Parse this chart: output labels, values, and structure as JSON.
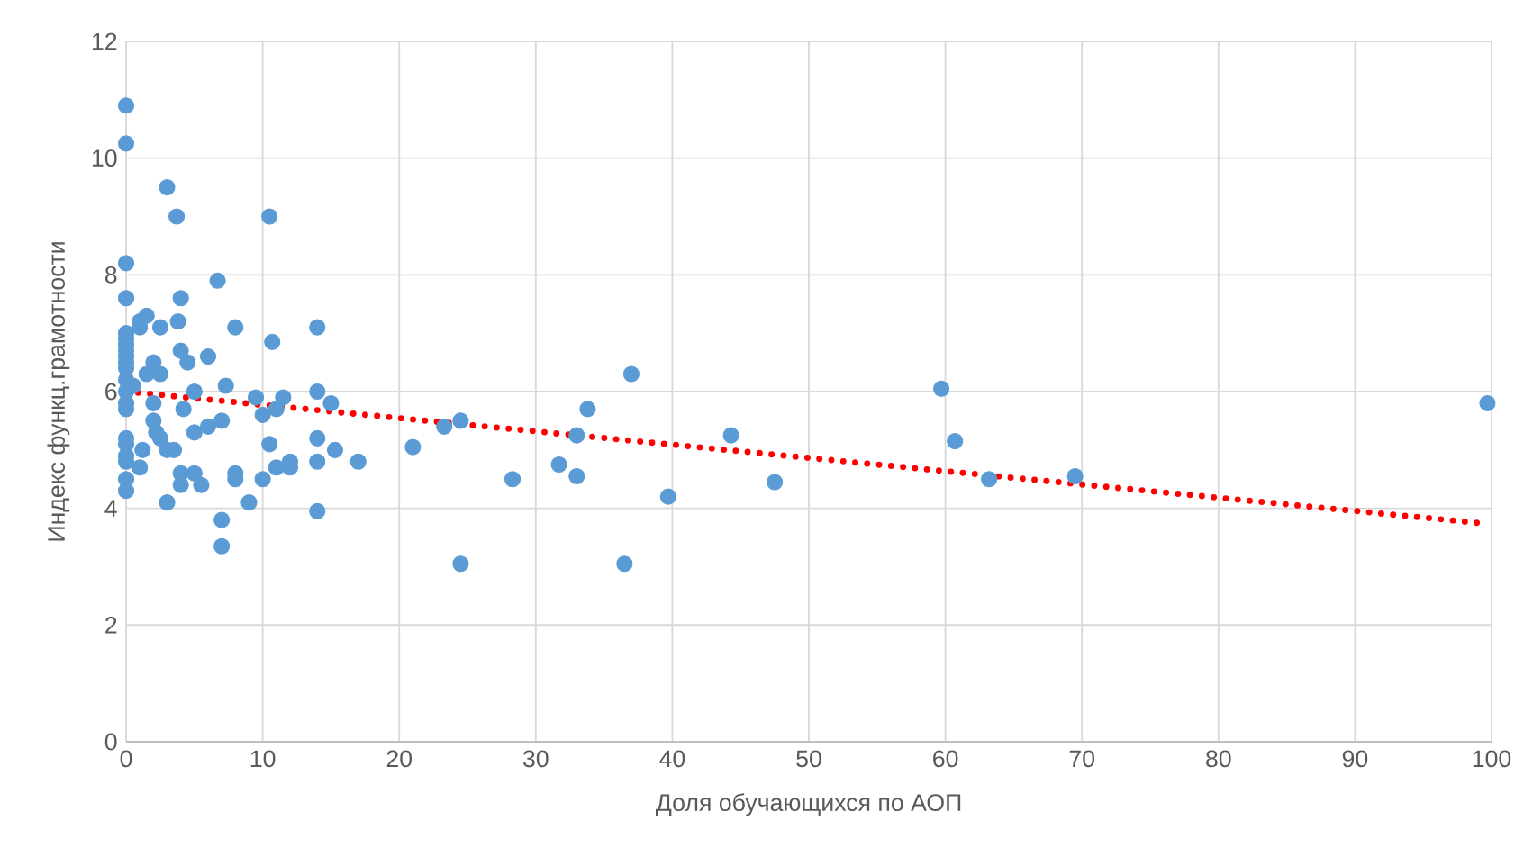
{
  "chart_data": {
    "type": "scatter",
    "xlabel": "Доля обучающихся по АОП",
    "ylabel": "Индекс функц.грамотности",
    "xlim": [
      0,
      100
    ],
    "ylim": [
      0,
      12
    ],
    "xticks": [
      0,
      10,
      20,
      30,
      40,
      50,
      60,
      70,
      80,
      90,
      100
    ],
    "yticks": [
      0,
      2,
      4,
      6,
      8,
      10,
      12
    ],
    "grid": true,
    "series": [
      {
        "color": "#5b9bd5",
        "marker": "circle",
        "x": [
          0,
          0,
          0,
          0,
          0,
          0,
          0,
          0,
          0,
          0,
          0,
          0,
          0,
          0,
          0,
          0,
          0,
          0,
          0,
          0,
          0,
          0.5,
          1,
          1,
          1.5,
          1,
          1.2,
          1.5,
          2,
          2,
          2,
          2.2,
          2.5,
          2.5,
          2.5,
          3,
          3,
          3,
          3.5,
          3.7,
          3.8,
          4,
          4,
          4,
          4,
          4.2,
          4.5,
          5,
          5,
          5,
          5.5,
          6,
          6,
          6.7,
          7,
          7,
          7,
          7.3,
          8,
          8,
          8,
          9,
          9.5,
          10,
          10,
          10.5,
          10.7,
          10.5,
          11,
          11,
          11.5,
          12,
          12,
          14,
          14,
          14,
          14,
          14,
          15,
          15.3,
          17,
          21,
          23.3,
          24.5,
          24.5,
          28.3,
          31.7,
          33,
          33,
          33.8,
          36.5,
          37,
          39.7,
          44.3,
          47.5,
          59.7,
          60.7,
          63.2,
          69.5,
          99.7
        ],
        "values": [
          10.9,
          10.25,
          8.2,
          7.6,
          7.0,
          6.9,
          6.8,
          6.7,
          6.6,
          6.5,
          6.4,
          6.2,
          6.0,
          5.8,
          5.7,
          5.2,
          5.1,
          4.9,
          4.8,
          4.5,
          4.3,
          6.1,
          7.2,
          7.1,
          7.3,
          4.7,
          5.0,
          6.3,
          6.5,
          5.8,
          5.5,
          5.3,
          7.1,
          6.3,
          5.2,
          9.5,
          4.1,
          5.0,
          5.0,
          9.0,
          7.2,
          7.6,
          6.7,
          4.6,
          4.4,
          5.7,
          6.5,
          6.0,
          5.3,
          4.6,
          4.4,
          6.6,
          5.4,
          7.9,
          3.8,
          3.35,
          5.5,
          6.1,
          7.1,
          4.6,
          4.5,
          4.1,
          5.9,
          5.6,
          4.5,
          9.0,
          6.85,
          5.1,
          5.7,
          4.7,
          5.9,
          4.8,
          4.7,
          7.1,
          6.0,
          5.2,
          4.8,
          3.95,
          5.8,
          5.0,
          4.8,
          5.05,
          5.4,
          5.5,
          3.05,
          4.5,
          4.75,
          5.25,
          4.55,
          5.7,
          3.05,
          6.3,
          4.2,
          5.25,
          4.45,
          6.05,
          5.15,
          4.5,
          4.55,
          5.8
        ]
      },
      {
        "type": "line",
        "color": "#ff0000",
        "marker": "none",
        "line_style": "dotted",
        "x": [
          0,
          99
        ],
        "values": [
          6.0,
          3.75
        ]
      }
    ]
  }
}
